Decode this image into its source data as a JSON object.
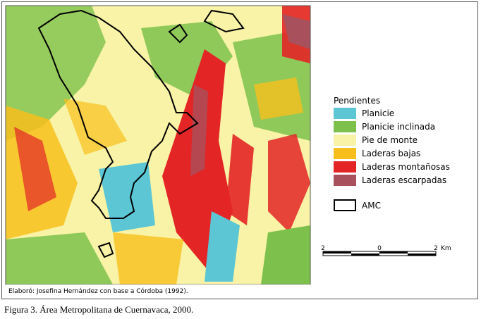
{
  "legend": {
    "title": "Pendientes",
    "items": [
      {
        "label": "Planicie",
        "color": "#5cc6d4"
      },
      {
        "label": "Planicie inclinada",
        "color": "#7dc14c"
      },
      {
        "label": "Pie de monte",
        "color": "#f8f3a6"
      },
      {
        "label": "Laderas bajas",
        "color": "#f8bf1c"
      },
      {
        "label": "Laderas montañosas",
        "color": "#e32526"
      },
      {
        "label": "Laderas escarpadas",
        "color": "#a8505b"
      }
    ],
    "boundary": {
      "label": "AMC"
    }
  },
  "scale_bar": {
    "labels": [
      "2",
      "0",
      "2",
      "Km"
    ]
  },
  "credit": "Elaboró: Josefina Hernández con base a Córdoba (1992).",
  "caption": "Figura 3. Área Metropolitana de Cuernavaca, 2000."
}
